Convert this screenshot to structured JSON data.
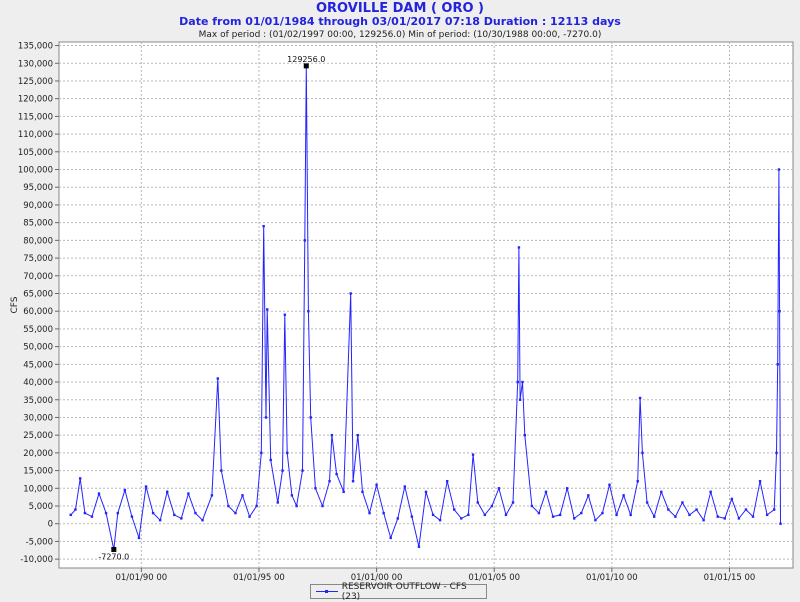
{
  "chart_data": {
    "type": "line",
    "title": "OROVILLE DAM ( ORO )",
    "subtitle": "Date from 01/01/1984 through 03/01/2017 07:18 Duration : 12113 days",
    "stats": "Max of period : (01/02/1997 00:00, 129256.0)  Min of period: (10/30/1988 00:00, -7270.0)",
    "ylabel": "CFS",
    "xlim": [
      1986.5,
      2017.7
    ],
    "ylim": [
      -12500,
      136000
    ],
    "yticks": [
      -10000,
      -5000,
      0,
      5000,
      10000,
      15000,
      20000,
      25000,
      30000,
      35000,
      40000,
      45000,
      50000,
      55000,
      60000,
      65000,
      70000,
      75000,
      80000,
      85000,
      90000,
      95000,
      100000,
      105000,
      110000,
      115000,
      120000,
      125000,
      130000,
      135000
    ],
    "ytick_labels": [
      "-10,000",
      "-5,000",
      "0",
      "5,000",
      "10,000",
      "15,000",
      "20,000",
      "25,000",
      "30,000",
      "35,000",
      "40,000",
      "45,000",
      "50,000",
      "55,000",
      "60,000",
      "65,000",
      "70,000",
      "75,000",
      "80,000",
      "85,000",
      "90,000",
      "95,000",
      "100,000",
      "105,000",
      "110,000",
      "115,000",
      "120,000",
      "125,000",
      "130,000",
      "135,000"
    ],
    "xticks": [
      1990,
      1995,
      2000,
      2005,
      2010,
      2015
    ],
    "xtick_labels": [
      "01/01/90 00",
      "01/01/95 00",
      "01/01/00 00",
      "01/01/05 00",
      "01/01/10 00",
      "01/01/15 00"
    ],
    "grid": true,
    "series": [
      {
        "name": "RESERVOIR OUTFLOW - CFS (23)",
        "color": "#2424ff",
        "points": [
          [
            1987.0,
            2500
          ],
          [
            1987.2,
            4000
          ],
          [
            1987.4,
            12800
          ],
          [
            1987.6,
            3000
          ],
          [
            1987.9,
            2000
          ],
          [
            1988.2,
            8500
          ],
          [
            1988.5,
            3000
          ],
          [
            1988.83,
            -7270
          ],
          [
            1989.0,
            3000
          ],
          [
            1989.3,
            9500
          ],
          [
            1989.6,
            2000
          ],
          [
            1989.9,
            -4000
          ],
          [
            1990.2,
            10500
          ],
          [
            1990.5,
            3000
          ],
          [
            1990.8,
            1000
          ],
          [
            1991.1,
            9000
          ],
          [
            1991.4,
            2500
          ],
          [
            1991.7,
            1500
          ],
          [
            1992.0,
            8500
          ],
          [
            1992.3,
            3000
          ],
          [
            1992.6,
            1000
          ],
          [
            1993.0,
            8000
          ],
          [
            1993.25,
            41000
          ],
          [
            1993.4,
            15000
          ],
          [
            1993.7,
            5000
          ],
          [
            1994.0,
            3000
          ],
          [
            1994.3,
            8000
          ],
          [
            1994.6,
            2000
          ],
          [
            1994.9,
            5000
          ],
          [
            1995.1,
            20000
          ],
          [
            1995.2,
            84000
          ],
          [
            1995.3,
            30000
          ],
          [
            1995.35,
            60500
          ],
          [
            1995.5,
            18000
          ],
          [
            1995.8,
            6000
          ],
          [
            1996.0,
            15000
          ],
          [
            1996.1,
            59000
          ],
          [
            1996.2,
            20000
          ],
          [
            1996.4,
            8000
          ],
          [
            1996.6,
            5000
          ],
          [
            1996.85,
            15000
          ],
          [
            1996.95,
            80000
          ],
          [
            1997.01,
            129256
          ],
          [
            1997.1,
            60000
          ],
          [
            1997.2,
            30000
          ],
          [
            1997.4,
            10000
          ],
          [
            1997.7,
            5000
          ],
          [
            1998.0,
            12000
          ],
          [
            1998.1,
            25000
          ],
          [
            1998.3,
            14000
          ],
          [
            1998.6,
            9000
          ],
          [
            1998.9,
            65000
          ],
          [
            1999.0,
            12000
          ],
          [
            1999.2,
            25000
          ],
          [
            1999.4,
            9000
          ],
          [
            1999.7,
            3000
          ],
          [
            2000.0,
            11000
          ],
          [
            2000.3,
            3000
          ],
          [
            2000.6,
            -4000
          ],
          [
            2000.9,
            1500
          ],
          [
            2001.2,
            10500
          ],
          [
            2001.5,
            2000
          ],
          [
            2001.8,
            -6500
          ],
          [
            2002.1,
            9000
          ],
          [
            2002.4,
            2500
          ],
          [
            2002.7,
            1000
          ],
          [
            2003.0,
            12000
          ],
          [
            2003.3,
            4000
          ],
          [
            2003.6,
            1500
          ],
          [
            2003.9,
            2500
          ],
          [
            2004.1,
            19500
          ],
          [
            2004.3,
            6000
          ],
          [
            2004.6,
            2500
          ],
          [
            2004.9,
            5000
          ],
          [
            2005.2,
            10000
          ],
          [
            2005.5,
            2500
          ],
          [
            2005.8,
            6000
          ],
          [
            2006.0,
            40000
          ],
          [
            2006.05,
            78000
          ],
          [
            2006.1,
            35000
          ],
          [
            2006.2,
            40000
          ],
          [
            2006.3,
            25000
          ],
          [
            2006.6,
            5000
          ],
          [
            2006.9,
            3000
          ],
          [
            2007.2,
            9000
          ],
          [
            2007.5,
            2000
          ],
          [
            2007.8,
            2500
          ],
          [
            2008.1,
            10000
          ],
          [
            2008.4,
            1500
          ],
          [
            2008.7,
            3000
          ],
          [
            2009.0,
            8000
          ],
          [
            2009.3,
            1000
          ],
          [
            2009.6,
            3000
          ],
          [
            2009.9,
            11000
          ],
          [
            2010.2,
            2500
          ],
          [
            2010.5,
            8000
          ],
          [
            2010.8,
            2500
          ],
          [
            2011.1,
            12000
          ],
          [
            2011.2,
            35500
          ],
          [
            2011.3,
            20000
          ],
          [
            2011.5,
            6000
          ],
          [
            2011.8,
            2000
          ],
          [
            2012.1,
            9000
          ],
          [
            2012.4,
            4000
          ],
          [
            2012.7,
            2000
          ],
          [
            2013.0,
            6000
          ],
          [
            2013.3,
            2500
          ],
          [
            2013.6,
            4000
          ],
          [
            2013.9,
            1000
          ],
          [
            2014.2,
            9000
          ],
          [
            2014.5,
            2000
          ],
          [
            2014.8,
            1500
          ],
          [
            2015.1,
            7000
          ],
          [
            2015.4,
            1500
          ],
          [
            2015.7,
            4000
          ],
          [
            2016.0,
            2000
          ],
          [
            2016.3,
            12000
          ],
          [
            2016.6,
            2500
          ],
          [
            2016.9,
            4000
          ],
          [
            2017.0,
            20000
          ],
          [
            2017.05,
            45000
          ],
          [
            2017.1,
            100000
          ],
          [
            2017.13,
            60000
          ],
          [
            2017.17,
            0
          ]
        ]
      }
    ],
    "annotations": [
      {
        "label": "129256.0",
        "x": 1997.01,
        "y": 129256
      },
      {
        "label": "-7270.0",
        "x": 1988.83,
        "y": -7270
      }
    ]
  }
}
